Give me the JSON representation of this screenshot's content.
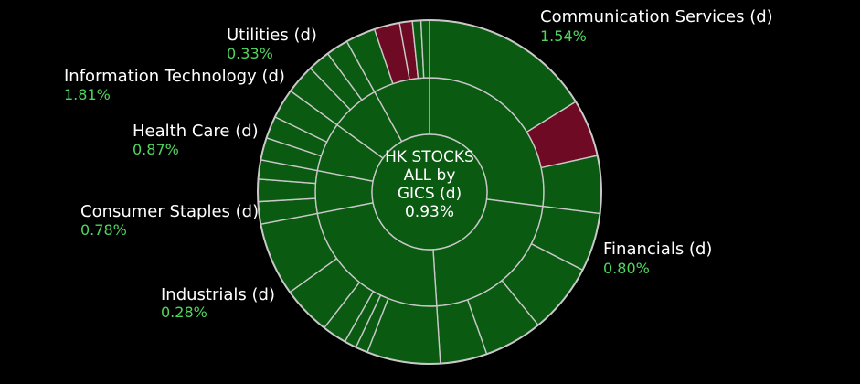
{
  "colors": {
    "background": "#000000",
    "positive": "#0a5a12",
    "negative": "#6e0a24",
    "positive_text": "#4fd65f",
    "border": "#c8c8c8"
  },
  "center": {
    "line1": "HK STOCKS",
    "line2": "ALL by",
    "line3": "GICS (d)",
    "value": "0.93%"
  },
  "chart_data": {
    "type": "sunburst",
    "title": "HK STOCKS ALL by GICS (d)",
    "total_change": "0.93%",
    "sectors": [
      {
        "name": "Communication Services (d)",
        "change": "1.54%",
        "share": 0.27
      },
      {
        "name": "Financials (d)",
        "change": "0.80%",
        "share": 0.22
      },
      {
        "name": "Industrials (d)",
        "change": "0.28%",
        "share": 0.23
      },
      {
        "name": "Consumer Staples (d)",
        "change": "0.78%",
        "share": 0.06
      },
      {
        "name": "Health Care (d)",
        "change": "0.87%",
        "share": 0.07
      },
      {
        "name": "Information Technology (d)",
        "change": "1.81%",
        "share": 0.07
      },
      {
        "name": "Utilities (d)",
        "change": "0.33%",
        "share": 0.08
      }
    ]
  }
}
